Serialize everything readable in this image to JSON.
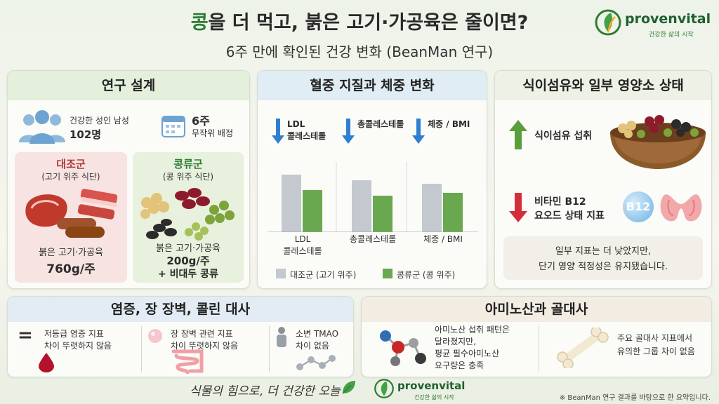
{
  "header": {
    "title_accent": "콩",
    "title_rest": "을 더 먹고, 붉은 고기·가공육은 줄이면?",
    "subtitle": "6주 만에 확인된 건강 변화 (BeanMan 연구)"
  },
  "brand": {
    "name": "provenvital",
    "tagline": "건강한 삶의 시작"
  },
  "study_design": {
    "title": "연구 설계",
    "participants_label": "건강한 성인 남성",
    "participants_count": "102명",
    "duration": "6주",
    "assignment": "무작위 배정",
    "control": {
      "name": "대조군",
      "desc": "(고기 위주 식단)",
      "food": "붉은 고기·가공육",
      "amount": "760g/주"
    },
    "legume": {
      "name": "콩류군",
      "desc": "(콩 위주 식단)",
      "food": "붉은 고기·가공육",
      "amount": "200g/주",
      "extra": "+ 비대두 콩류"
    }
  },
  "lipids": {
    "title": "혈중 지질과 체중 변화",
    "indicators": [
      "LDL\n콜레스테롤",
      "총콜레스테롤",
      "체중 / BMI"
    ],
    "legend": [
      "대조군 (고기 위주)",
      "콩류군 (콩 위주)"
    ],
    "colors": {
      "control": "#c4c8cf",
      "legume": "#6aa84f",
      "down": "#2f7fd0"
    }
  },
  "chart_data": {
    "type": "bar",
    "categories": [
      "LDL\n콜레스테롤",
      "총콜레스테롤",
      "체중 / BMI"
    ],
    "series": [
      {
        "name": "대조군 (고기 위주)",
        "values": [
          82,
          74,
          69
        ]
      },
      {
        "name": "콩류군 (콩 위주)",
        "values": [
          60,
          52,
          56
        ]
      }
    ],
    "ylim": [
      0,
      100
    ]
  },
  "fiber": {
    "title": "식이섬유와 일부 영양소 상태",
    "up_label": "식이섬유 섭취",
    "down_label_1": "비타민 B12",
    "down_label_2": "요오드 상태 지표",
    "b12_icon_text": "B12",
    "note_1": "일부 지표는 더 낮았지만,",
    "note_2": "단기 영양 적정성은 유지됐습니다.",
    "colors": {
      "up": "#5a9e3c",
      "down": "#d32f3a"
    }
  },
  "inflammation": {
    "title": "염증, 장 장벽, 콜린 대사",
    "items": [
      {
        "line1": "저등급 염증 지표",
        "line2": "차이 뚜렷하지 않음"
      },
      {
        "line1": "장 장벽 관련 지표",
        "line2": "차이 뚜렷하지 않음"
      },
      {
        "line1": "소변 TMAO",
        "line2": "차이 없음"
      }
    ]
  },
  "amino": {
    "title": "아미노산과 골대사",
    "left_lines": [
      "아미노산 섭취 패턴은",
      "달라졌지만,",
      "평균 필수아미노산",
      "요구량은 충족"
    ],
    "right_lines": [
      "주요 골대사 지표에서",
      "유의한 그룹 차이 없음"
    ]
  },
  "footer": {
    "slogan": "식물의 힘으로, 더 건강한 오늘",
    "note": "※ BeanMan 연구 결과를 바탕으로 한 요약입니다."
  }
}
